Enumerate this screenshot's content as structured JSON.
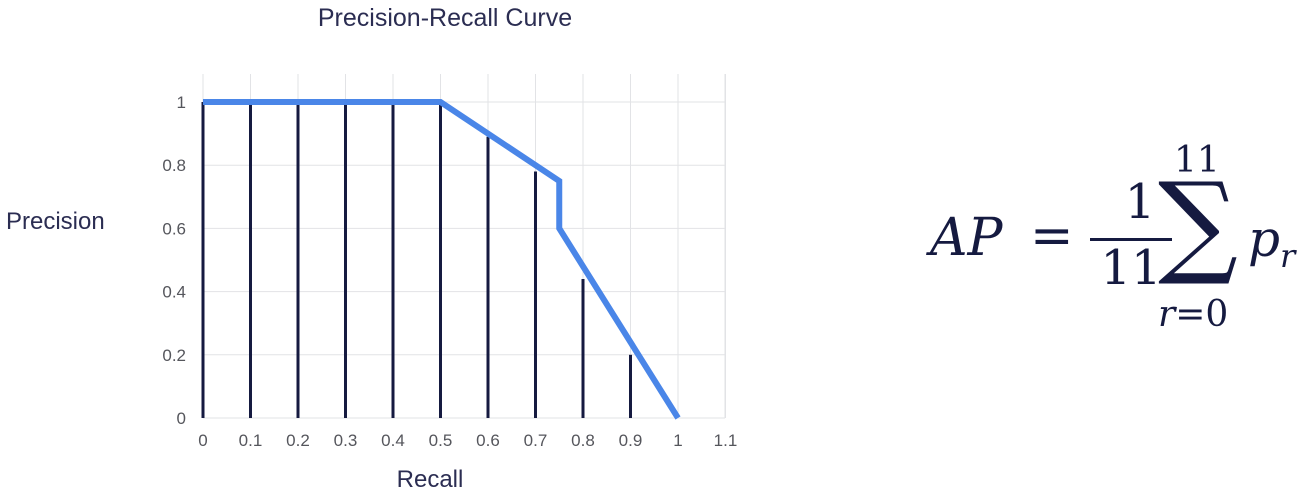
{
  "chart_data": {
    "type": "line",
    "title": "Precision-Recall Curve",
    "xlabel": "Recall",
    "ylabel": "Precision",
    "xlim": [
      0,
      1.1
    ],
    "ylim": [
      0,
      1.08
    ],
    "x_ticks": [
      "0",
      "0.1",
      "0.2",
      "0.3",
      "0.4",
      "0.5",
      "0.6",
      "0.7",
      "0.8",
      "0.9",
      "1",
      "1.1"
    ],
    "y_ticks": [
      "0",
      "0.2",
      "0.4",
      "0.6",
      "0.8",
      "1"
    ],
    "grid": true,
    "series": [
      {
        "x": [
          0,
          0.5,
          0.75,
          0.75,
          1.0
        ],
        "y": [
          1.0,
          1.0,
          0.75,
          0.6,
          0.0
        ],
        "color": "#4a86e8"
      }
    ],
    "interpolated_points": {
      "x": [
        0,
        0.1,
        0.2,
        0.3,
        0.4,
        0.5,
        0.6,
        0.7,
        0.8,
        0.9,
        1.0
      ],
      "y": [
        1.0,
        1.0,
        1.0,
        1.0,
        1.0,
        1.0,
        0.89,
        0.78,
        0.44,
        0.2,
        0.0
      ],
      "color": "#151a40"
    }
  },
  "formula": {
    "lhs": "AP",
    "equals": "=",
    "numerator": "1",
    "denominator": "11",
    "sum_symbol": "∑",
    "upper_limit": "11",
    "lower_var": "r",
    "lower_eq": "=0",
    "term": "p",
    "term_sub": "r"
  }
}
